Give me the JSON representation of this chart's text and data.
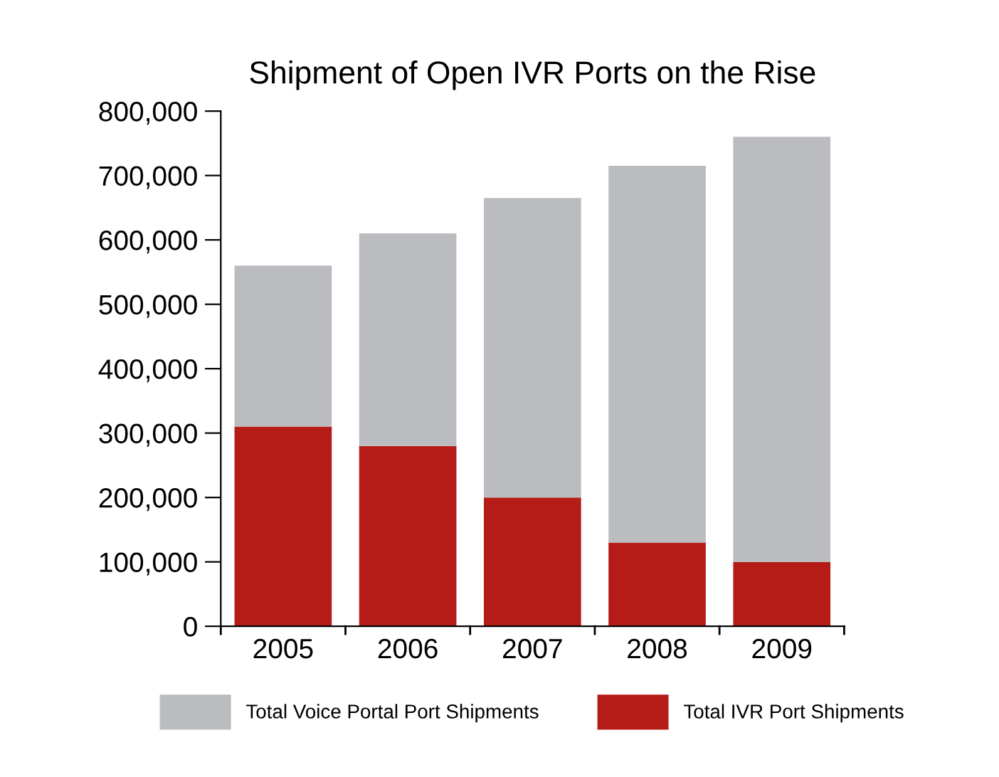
{
  "chart_data": {
    "type": "bar",
    "title": "Shipment of Open IVR Ports on the Rise",
    "categories": [
      "2005",
      "2006",
      "2007",
      "2008",
      "2009"
    ],
    "stacked": true,
    "series": [
      {
        "name": "Total IVR Port Shipments",
        "color": "#b51c17",
        "values": [
          310000,
          280000,
          200000,
          130000,
          100000
        ]
      },
      {
        "name": "Total Voice Portal Port Shipments",
        "color": "#bbbcbf",
        "values": [
          250000,
          330000,
          465000,
          585000,
          660000
        ]
      }
    ],
    "ylim": [
      0,
      800000
    ],
    "yticks": [
      {
        "value": 0,
        "label": "0"
      },
      {
        "value": 100000,
        "label": "100,000"
      },
      {
        "value": 200000,
        "label": "200,000"
      },
      {
        "value": 300000,
        "label": "300,000"
      },
      {
        "value": 400000,
        "label": "400,000"
      },
      {
        "value": 500000,
        "label": "500,000"
      },
      {
        "value": 600000,
        "label": "600,000"
      },
      {
        "value": 700000,
        "label": "700,000"
      },
      {
        "value": 800000,
        "label": "800,000"
      }
    ],
    "grid": false,
    "legend": "bottom"
  }
}
